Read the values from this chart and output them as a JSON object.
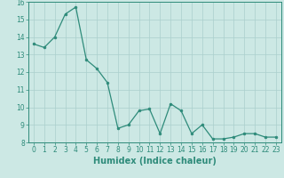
{
  "x": [
    0,
    1,
    2,
    3,
    4,
    5,
    6,
    7,
    8,
    9,
    10,
    11,
    12,
    13,
    14,
    15,
    16,
    17,
    18,
    19,
    20,
    21,
    22,
    23
  ],
  "y": [
    13.6,
    13.4,
    14.0,
    15.3,
    15.7,
    12.7,
    12.2,
    11.4,
    8.8,
    9.0,
    9.8,
    9.9,
    8.5,
    10.2,
    9.8,
    8.5,
    9.0,
    8.2,
    8.2,
    8.3,
    8.5,
    8.5,
    8.3,
    8.3
  ],
  "xlabel": "Humidex (Indice chaleur)",
  "ylim": [
    8,
    16
  ],
  "xlim": [
    -0.5,
    23.5
  ],
  "yticks": [
    8,
    9,
    10,
    11,
    12,
    13,
    14,
    15,
    16
  ],
  "xticks": [
    0,
    1,
    2,
    3,
    4,
    5,
    6,
    7,
    8,
    9,
    10,
    11,
    12,
    13,
    14,
    15,
    16,
    17,
    18,
    19,
    20,
    21,
    22,
    23
  ],
  "line_color": "#2e8b7a",
  "marker": "o",
  "marker_size": 2.0,
  "bg_color": "#cce8e4",
  "grid_color": "#aacfcc",
  "tick_label_fontsize": 5.5,
  "xlabel_fontsize": 7.0
}
